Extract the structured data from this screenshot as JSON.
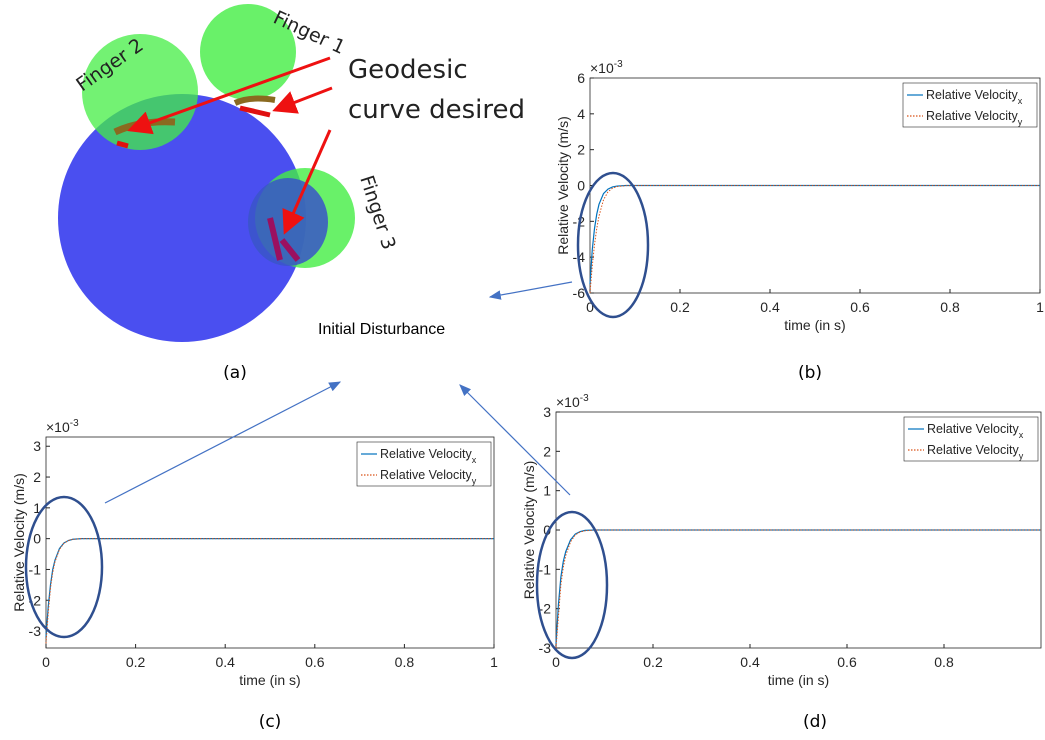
{
  "chart_data": [
    {
      "type": "line",
      "xlabel": "time (in s)",
      "ylabel": "Relative Velocity (m/s)",
      "y_scale": {
        "base": "×10",
        "exponent": "-3"
      },
      "xlim": [
        0,
        1
      ],
      "ylim": [
        -6,
        6
      ],
      "xticks": [
        0,
        0.2,
        0.4,
        0.6,
        0.8,
        1
      ],
      "yticks": [
        -6,
        -4,
        -2,
        0,
        2,
        4,
        6
      ],
      "legend": "upper right",
      "grid": false,
      "x": [
        0,
        0.005,
        0.01,
        0.015,
        0.02,
        0.03,
        0.04,
        0.05,
        0.06,
        0.08,
        0.1,
        0.2,
        0.4,
        0.6,
        0.8,
        1
      ],
      "series": [
        {
          "name": "Relative Velocity",
          "subscript": "x",
          "color": "#0072bd",
          "style": "solid",
          "values": [
            -5.5,
            -3.6,
            -2.4,
            -1.6,
            -1.05,
            -0.45,
            -0.2,
            -0.08,
            -0.03,
            0,
            0,
            0,
            0,
            0,
            0,
            0
          ]
        },
        {
          "name": "Relative Velocity",
          "subscript": "y",
          "color": "#d95319",
          "style": "dotted",
          "values": [
            -6,
            -4.5,
            -3.3,
            -2.4,
            -1.7,
            -0.8,
            -0.35,
            -0.15,
            -0.06,
            -0.01,
            0,
            0,
            0,
            0,
            0,
            0
          ]
        }
      ]
    },
    {
      "type": "line",
      "xlabel": "time (in s)",
      "ylabel": "Relative Velocity (m/s)",
      "y_scale": {
        "base": "×10",
        "exponent": "-3"
      },
      "xlim": [
        0,
        1
      ],
      "ylim": [
        -3.55,
        3.3
      ],
      "xticks": [
        0,
        0.2,
        0.4,
        0.6,
        0.8,
        1
      ],
      "yticks": [
        -3,
        -2,
        -1,
        0,
        1,
        2,
        3
      ],
      "legend": "upper right",
      "grid": false,
      "x": [
        0,
        0.005,
        0.01,
        0.015,
        0.02,
        0.03,
        0.04,
        0.05,
        0.06,
        0.08,
        0.1,
        0.2,
        0.4,
        0.6,
        0.8,
        1
      ],
      "series": [
        {
          "name": "Relative Velocity",
          "subscript": "x",
          "color": "#0072bd",
          "style": "solid",
          "values": [
            -3.2,
            -2.2,
            -1.5,
            -1,
            -0.7,
            -0.32,
            -0.14,
            -0.06,
            -0.02,
            0,
            0,
            0,
            0,
            0,
            0,
            0
          ]
        },
        {
          "name": "Relative Velocity",
          "subscript": "y",
          "color": "#d95319",
          "style": "dotted",
          "values": [
            -3.4,
            -2.4,
            -1.6,
            -1.1,
            -0.75,
            -0.35,
            -0.15,
            -0.06,
            -0.02,
            0,
            0,
            0,
            0,
            0,
            0,
            0
          ]
        }
      ]
    },
    {
      "type": "line",
      "xlabel": "time (in s)",
      "ylabel": "Relative Velocity (m/s)",
      "y_scale": {
        "base": "×10",
        "exponent": "-3"
      },
      "xlim": [
        0,
        1
      ],
      "ylim": [
        -3,
        3
      ],
      "xticks": [
        0,
        0.2,
        0.4,
        0.6,
        0.8
      ],
      "yticks": [
        -3,
        -2,
        -1,
        0,
        1,
        2,
        3
      ],
      "legend": "upper right",
      "grid": false,
      "x": [
        0,
        0.005,
        0.01,
        0.015,
        0.02,
        0.03,
        0.04,
        0.05,
        0.06,
        0.08,
        0.1,
        0.2,
        0.4,
        0.6,
        0.8,
        1
      ],
      "series": [
        {
          "name": "Relative Velocity",
          "subscript": "x",
          "color": "#0072bd",
          "style": "solid",
          "values": [
            -2.9,
            -1.9,
            -1.2,
            -0.8,
            -0.55,
            -0.25,
            -0.1,
            -0.04,
            -0.01,
            0,
            0,
            0,
            0,
            0,
            0,
            0
          ]
        },
        {
          "name": "Relative Velocity",
          "subscript": "y",
          "color": "#d95319",
          "style": "dotted",
          "values": [
            -3,
            -2.2,
            -1.4,
            -0.95,
            -0.65,
            -0.3,
            -0.12,
            -0.05,
            -0.02,
            0,
            0,
            0,
            0,
            0,
            0,
            0
          ]
        }
      ]
    }
  ],
  "illustration": {
    "finger_labels": [
      "Finger 1",
      "Finger 2",
      "Finger 3"
    ],
    "callout": [
      "Geodesic",
      "curve desired"
    ],
    "annotation": "Initial Disturbance"
  },
  "panel_labels": [
    "(a)",
    "(b)",
    "(c)",
    "(d)"
  ]
}
